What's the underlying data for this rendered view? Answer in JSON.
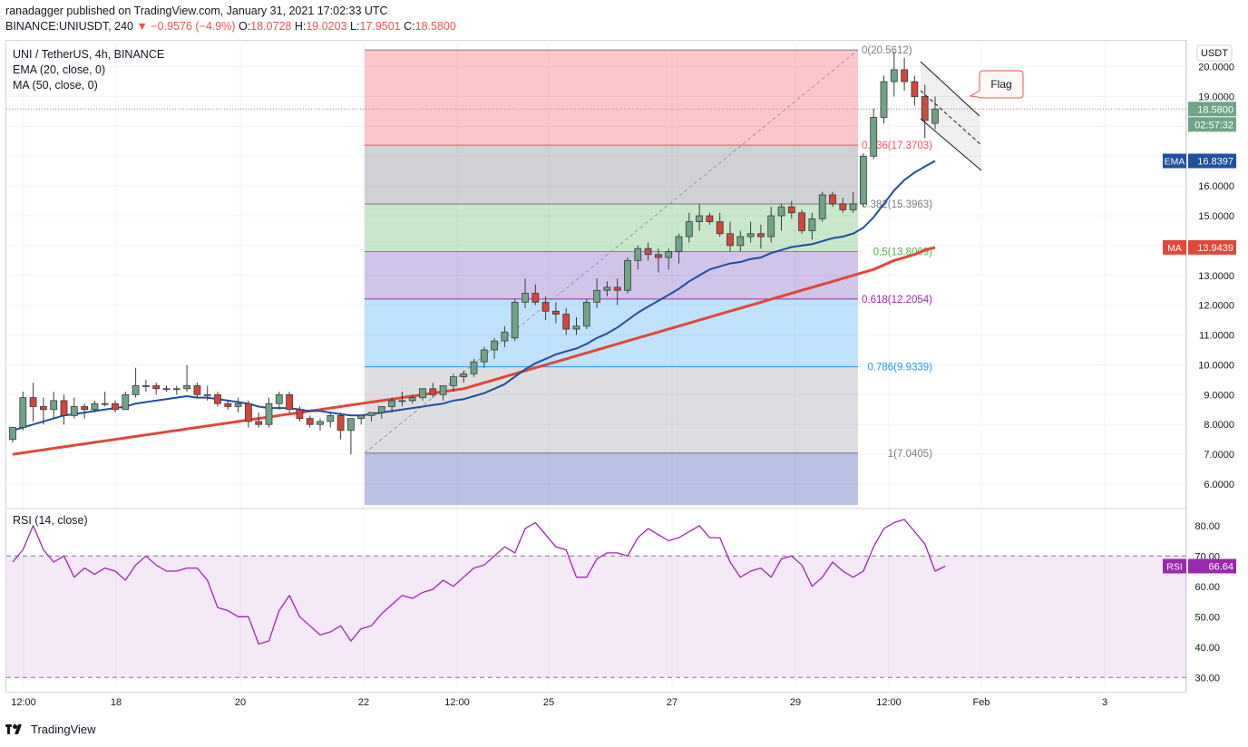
{
  "header": {
    "publisher_line": "ranadagger published on TradingView.com, January 31, 2021 17:02:33 UTC",
    "symbol": "BINANCE:UNIUSDT, 240",
    "change": "−0.9576 (−4.9%)",
    "o_label": "O:",
    "o_value": "18.0728",
    "h_label": "H:",
    "h_value": "19.0203",
    "l_label": "L:",
    "l_value": "17.9501",
    "c_label": "C:",
    "c_value": "18.5800"
  },
  "legend": {
    "title": "UNI / TetherUS, 4h, BINANCE",
    "ema": "EMA (20, close, 0)",
    "ma": "MA (50, close, 0)",
    "rsi": "RSI (14, close)"
  },
  "axis": {
    "currency": "USDT",
    "price_ticks": [
      "20.0000",
      "19.0000",
      "18.0000",
      "16.0000",
      "15.0000",
      "14.0000",
      "13.0000",
      "12.0000",
      "11.0000",
      "10.0000",
      "9.0000",
      "8.0000",
      "7.0000",
      "6.0000"
    ],
    "rsi_ticks": [
      "80.00",
      "70.00",
      "60.00",
      "50.00",
      "40.00",
      "30.00"
    ],
    "time_ticks": [
      "12:00",
      "18",
      "20",
      "22",
      "12:00",
      "25",
      "27",
      "29",
      "12:00",
      "Feb",
      "3"
    ]
  },
  "badges": {
    "last_price": "18.5800",
    "countdown": "02:57:32",
    "ema_label": "EMA",
    "ema_value": "16.8397",
    "ma_label": "MA",
    "ma_value": "13.9439",
    "rsi_label": "RSI",
    "rsi_value": "66.64"
  },
  "fib_levels": [
    {
      "label": "0(20.5612)",
      "price": 20.5612,
      "color": "#787b86"
    },
    {
      "label": "0.236(17.3703)",
      "price": 17.3703,
      "color": "#f7525f"
    },
    {
      "label": "0.382(15.3963)",
      "price": 15.3963,
      "color": "#787b86"
    },
    {
      "label": "0.5(13.8009)",
      "price": 13.8009,
      "color": "#4caf50"
    },
    {
      "label": "0.618(12.2054)",
      "price": 12.2054,
      "color": "#9c27b0"
    },
    {
      "label": "0.786(9.9339)",
      "price": 9.9339,
      "color": "#2196f3"
    },
    {
      "label": "1(7.0405)",
      "price": 7.0405,
      "color": "#787b86"
    }
  ],
  "annotation": {
    "flag": "Flag"
  },
  "footer": {
    "brand": "TradingView"
  },
  "colors": {
    "up": "#26a69a",
    "down": "#ef5350",
    "ema": "#1e4fa0",
    "ma": "#e0483a",
    "rsi": "#9c27b0",
    "up_body": "#6fa487",
    "down_body": "#d4453a"
  },
  "chart_data": {
    "type": "candlestick",
    "title": "UNI / TetherUS, 4h, BINANCE",
    "x_categories": [
      "12:00",
      "18",
      "20",
      "22",
      "12:00",
      "25",
      "27",
      "29",
      "12:00",
      "Feb",
      "3"
    ],
    "price_range": [
      5.3,
      20.9
    ],
    "candles": [
      [
        7.5,
        7.9,
        7.4,
        7.9
      ],
      [
        7.9,
        9.1,
        7.8,
        8.9
      ],
      [
        8.9,
        9.4,
        8.1,
        8.6
      ],
      [
        8.6,
        8.9,
        8.0,
        8.5
      ],
      [
        8.5,
        9.1,
        8.2,
        8.8
      ],
      [
        8.8,
        9.0,
        8.0,
        8.3
      ],
      [
        8.3,
        8.9,
        8.2,
        8.6
      ],
      [
        8.6,
        8.7,
        8.2,
        8.5
      ],
      [
        8.5,
        8.8,
        8.4,
        8.7
      ],
      [
        8.7,
        9.1,
        8.6,
        8.7
      ],
      [
        8.7,
        8.8,
        8.4,
        8.5
      ],
      [
        8.5,
        9.1,
        8.5,
        9.0
      ],
      [
        9.0,
        9.9,
        8.9,
        9.3
      ],
      [
        9.3,
        9.5,
        9.1,
        9.3
      ],
      [
        9.3,
        9.4,
        9.0,
        9.2
      ],
      [
        9.2,
        9.3,
        9.1,
        9.2
      ],
      [
        9.2,
        9.3,
        9.0,
        9.2
      ],
      [
        9.2,
        10.0,
        9.1,
        9.3
      ],
      [
        9.3,
        9.4,
        8.9,
        9.0
      ],
      [
        9.0,
        9.3,
        8.8,
        9.0
      ],
      [
        9.0,
        9.1,
        8.6,
        8.7
      ],
      [
        8.7,
        8.8,
        8.5,
        8.6
      ],
      [
        8.6,
        8.9,
        8.4,
        8.7
      ],
      [
        8.7,
        8.8,
        7.9,
        8.1
      ],
      [
        8.1,
        8.4,
        7.9,
        8.0
      ],
      [
        8.0,
        8.9,
        7.9,
        8.7
      ],
      [
        8.7,
        9.1,
        8.5,
        9.0
      ],
      [
        9.0,
        9.1,
        8.4,
        8.5
      ],
      [
        8.5,
        8.6,
        8.1,
        8.2
      ],
      [
        8.2,
        8.3,
        7.9,
        8.0
      ],
      [
        8.0,
        8.2,
        7.8,
        8.1
      ],
      [
        8.1,
        8.4,
        7.9,
        8.3
      ],
      [
        8.3,
        8.4,
        7.5,
        7.8
      ],
      [
        7.8,
        8.1,
        7.0,
        8.2
      ],
      [
        8.2,
        8.3,
        8.0,
        8.3
      ],
      [
        8.3,
        8.4,
        8.1,
        8.4
      ],
      [
        8.4,
        8.6,
        8.2,
        8.6
      ],
      [
        8.6,
        8.9,
        8.4,
        8.8
      ],
      [
        8.8,
        9.1,
        8.6,
        8.8
      ],
      [
        8.8,
        9.0,
        8.7,
        8.9
      ],
      [
        8.9,
        9.2,
        8.8,
        9.2
      ],
      [
        9.2,
        9.4,
        8.9,
        9.0
      ],
      [
        9.0,
        9.3,
        8.8,
        9.3
      ],
      [
        9.3,
        9.7,
        9.1,
        9.6
      ],
      [
        9.6,
        9.8,
        9.4,
        9.7
      ],
      [
        9.7,
        10.2,
        9.6,
        10.1
      ],
      [
        10.1,
        10.6,
        9.9,
        10.5
      ],
      [
        10.5,
        10.9,
        10.2,
        10.8
      ],
      [
        10.8,
        11.3,
        10.6,
        11.1
      ],
      [
        10.9,
        12.2,
        10.8,
        12.1
      ],
      [
        12.1,
        12.9,
        11.9,
        12.4
      ],
      [
        12.4,
        12.7,
        12.0,
        12.1
      ],
      [
        12.1,
        12.3,
        11.5,
        11.8
      ],
      [
        11.8,
        12.1,
        11.4,
        11.7
      ],
      [
        11.7,
        11.9,
        11.0,
        11.2
      ],
      [
        11.2,
        11.6,
        11.0,
        11.3
      ],
      [
        11.3,
        12.2,
        11.2,
        12.1
      ],
      [
        12.1,
        12.9,
        11.9,
        12.5
      ],
      [
        12.5,
        12.8,
        12.3,
        12.6
      ],
      [
        12.6,
        12.9,
        12.0,
        12.5
      ],
      [
        12.5,
        13.6,
        12.4,
        13.5
      ],
      [
        13.5,
        14.0,
        13.2,
        13.9
      ],
      [
        13.9,
        14.1,
        13.5,
        13.7
      ],
      [
        13.7,
        13.9,
        13.1,
        13.6
      ],
      [
        13.6,
        13.9,
        13.2,
        13.8
      ],
      [
        13.8,
        14.4,
        13.4,
        14.3
      ],
      [
        14.3,
        15.1,
        14.1,
        14.8
      ],
      [
        14.8,
        15.4,
        14.5,
        15.0
      ],
      [
        15.0,
        15.1,
        14.7,
        14.8
      ],
      [
        14.8,
        15.1,
        14.3,
        14.4
      ],
      [
        14.4,
        14.8,
        13.8,
        14.0
      ],
      [
        14.0,
        14.5,
        13.8,
        14.3
      ],
      [
        14.3,
        14.8,
        14.1,
        14.4
      ],
      [
        14.4,
        14.7,
        13.9,
        14.3
      ],
      [
        14.3,
        15.3,
        14.1,
        15.0
      ],
      [
        15.0,
        15.4,
        14.5,
        15.3
      ],
      [
        15.3,
        15.5,
        14.9,
        15.1
      ],
      [
        15.1,
        15.2,
        14.4,
        14.5
      ],
      [
        14.5,
        15.1,
        14.2,
        14.9
      ],
      [
        14.9,
        15.8,
        14.8,
        15.7
      ],
      [
        15.7,
        15.8,
        15.3,
        15.4
      ],
      [
        15.4,
        15.6,
        15.1,
        15.2
      ],
      [
        15.2,
        15.8,
        15.1,
        15.4
      ],
      [
        15.4,
        17.1,
        15.3,
        17.0
      ],
      [
        17.0,
        18.6,
        16.9,
        18.3
      ],
      [
        18.3,
        19.7,
        18.1,
        19.5
      ],
      [
        19.5,
        20.5,
        19.0,
        19.9
      ],
      [
        19.9,
        20.3,
        19.2,
        19.5
      ],
      [
        19.5,
        19.7,
        18.7,
        19.0
      ],
      [
        19.0,
        19.4,
        17.6,
        18.2
      ],
      [
        18.1,
        19.0,
        17.9,
        18.58
      ]
    ],
    "ema20": [
      7.8,
      7.9,
      8.0,
      8.1,
      8.2,
      8.3,
      8.35,
      8.4,
      8.45,
      8.5,
      8.55,
      8.6,
      8.7,
      8.75,
      8.8,
      8.85,
      8.9,
      8.95,
      8.9,
      8.9,
      8.85,
      8.8,
      8.75,
      8.7,
      8.6,
      8.55,
      8.55,
      8.55,
      8.5,
      8.45,
      8.45,
      8.4,
      8.35,
      8.3,
      8.3,
      8.35,
      8.4,
      8.45,
      8.5,
      8.55,
      8.6,
      8.65,
      8.7,
      8.8,
      8.85,
      8.95,
      9.05,
      9.2,
      9.35,
      9.6,
      9.85,
      10.05,
      10.2,
      10.35,
      10.45,
      10.55,
      10.7,
      10.9,
      11.05,
      11.25,
      11.5,
      11.75,
      11.95,
      12.15,
      12.35,
      12.55,
      12.8,
      13.0,
      13.2,
      13.3,
      13.4,
      13.45,
      13.55,
      13.6,
      13.75,
      13.85,
      13.95,
      14.0,
      14.05,
      14.15,
      14.25,
      14.3,
      14.4,
      14.6,
      14.95,
      15.4,
      15.85,
      16.2,
      16.45,
      16.65,
      16.84
    ],
    "ma50": [
      7.0,
      7.05,
      7.1,
      7.15,
      7.2,
      7.25,
      7.3,
      7.35,
      7.4,
      7.45,
      7.5,
      7.55,
      7.6,
      7.65,
      7.7,
      7.75,
      7.8,
      7.85,
      7.9,
      7.95,
      8.0,
      8.05,
      8.1,
      8.15,
      8.2,
      8.25,
      8.3,
      8.35,
      8.4,
      8.45,
      8.5,
      8.55,
      8.6,
      8.65,
      8.7,
      8.75,
      8.8,
      8.85,
      8.9,
      8.95,
      9.0,
      9.05,
      9.1,
      9.15,
      9.2,
      9.3,
      9.4,
      9.5,
      9.6,
      9.7,
      9.8,
      9.9,
      10.0,
      10.1,
      10.2,
      10.3,
      10.4,
      10.5,
      10.6,
      10.7,
      10.8,
      10.9,
      11.0,
      11.1,
      11.2,
      11.3,
      11.4,
      11.5,
      11.6,
      11.7,
      11.8,
      11.9,
      12.0,
      12.1,
      12.2,
      12.3,
      12.4,
      12.5,
      12.6,
      12.7,
      12.8,
      12.9,
      13.0,
      13.1,
      13.2,
      13.35,
      13.5,
      13.6,
      13.7,
      13.85,
      13.94
    ],
    "rsi": [
      68,
      72,
      80,
      72,
      68,
      70,
      63,
      66,
      64,
      66,
      65,
      62,
      67,
      70,
      67,
      65,
      65,
      66,
      66,
      62,
      53,
      52,
      50,
      50,
      41,
      42,
      52,
      57,
      50,
      47,
      44,
      45,
      47,
      42,
      46,
      47,
      51,
      54,
      57,
      56,
      58,
      59,
      62,
      60,
      63,
      66,
      67,
      70,
      73,
      71,
      79,
      81,
      77,
      73,
      72,
      63,
      63,
      69,
      71,
      71,
      70,
      76,
      79,
      77,
      75,
      76,
      78,
      80,
      76,
      76,
      68,
      63,
      65,
      66,
      63,
      69,
      70,
      67,
      60,
      63,
      68,
      65,
      63,
      65,
      73,
      79,
      81,
      82,
      78,
      74,
      65,
      66.64
    ],
    "rsi_range": [
      25,
      85
    ],
    "fib_range": [
      7.0405,
      20.5612
    ]
  }
}
